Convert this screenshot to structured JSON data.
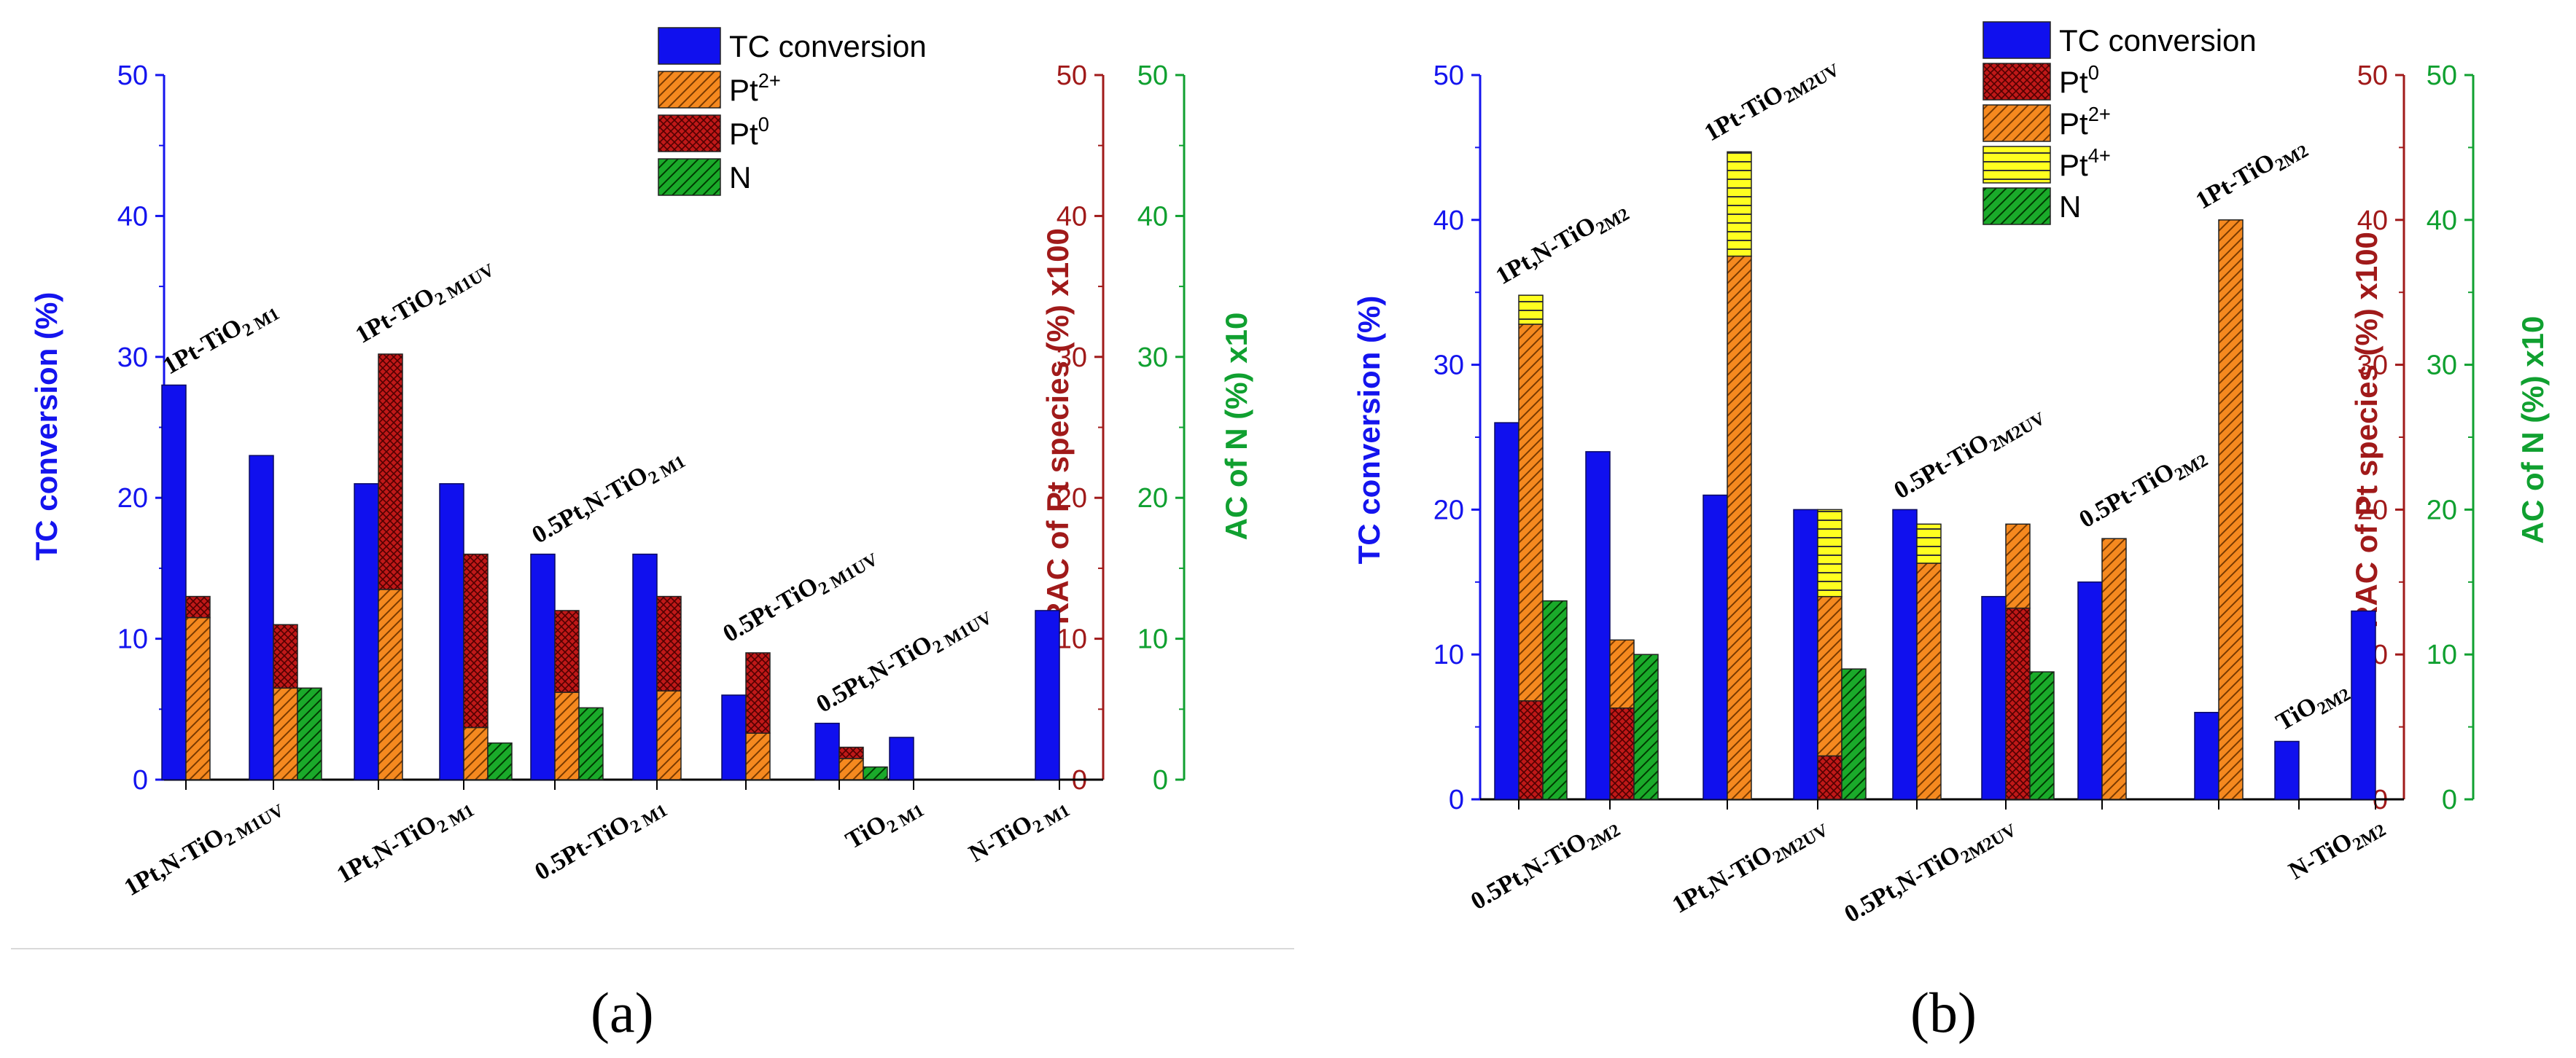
{
  "colors": {
    "blue": "#1010ee",
    "orange": "#f5891f",
    "darkred": "#c01818",
    "yellow": "#ffff20",
    "green": "#1aaa2a",
    "axisBlue": "#1414ee",
    "axisRed": "#a01a1a",
    "axisGreen": "#10a030"
  },
  "panels": [
    {
      "caption": "(a)",
      "legend": [
        {
          "name": "TC conversion",
          "sup": "",
          "style": "blue"
        },
        {
          "name": "Pt",
          "sup": "2+",
          "style": "pt2"
        },
        {
          "name": "Pt",
          "sup": "0",
          "style": "pt0"
        },
        {
          "name": "N",
          "sup": "",
          "style": "n"
        }
      ],
      "axes": {
        "left": {
          "label": "TC conversion (%)",
          "ticks": [
            "0",
            "10",
            "20",
            "30",
            "40",
            "50"
          ]
        },
        "right_red": {
          "label": "RAC of Pt species (%) x100",
          "ticks": [
            "0",
            "10",
            "20",
            "30",
            "40",
            "50"
          ]
        },
        "right_green": {
          "label": "AC of N (%) x10",
          "ticks": [
            "0",
            "10",
            "20",
            "30",
            "40",
            "50"
          ]
        }
      },
      "chart_data": {
        "type": "bar",
        "title": "",
        "ylim": [
          0,
          50
        ],
        "ylabel": "TC conversion (%)",
        "y2label": "RAC of Pt species (%) x100",
        "y3label": "AC of N (%) x10",
        "samples": [
          {
            "label": "1Pt-TiO",
            "sub": "2 M1",
            "tc": 28,
            "pt2": 11.5,
            "pt0": 1.5,
            "pt4": 0,
            "n": 0,
            "labelPos": "top"
          },
          {
            "label": "1Pt,N-TiO",
            "sub": "2 M1UV",
            "tc": 23,
            "pt2": 6.5,
            "pt0": 4.5,
            "pt4": 0,
            "n": 6.5,
            "labelPos": "bottom"
          },
          {
            "label": "1Pt-TiO",
            "sub": "2 M1UV",
            "tc": 21,
            "pt2": 13.5,
            "pt0": 16.7,
            "pt4": 0,
            "n": 0,
            "labelPos": "top"
          },
          {
            "label": "1Pt,N-TiO",
            "sub": "2 M1",
            "tc": 21,
            "pt2": 3.7,
            "pt0": 12.3,
            "pt4": 0,
            "n": 2.6,
            "labelPos": "bottom"
          },
          {
            "label": "0.5Pt,N-TiO",
            "sub": "2 M1",
            "tc": 16,
            "pt2": 6.2,
            "pt0": 5.8,
            "pt4": 0,
            "n": 5.1,
            "labelPos": "top"
          },
          {
            "label": "0.5Pt-TiO",
            "sub": "2 M1",
            "tc": 16,
            "pt2": 6.3,
            "pt0": 6.7,
            "pt4": 0,
            "n": 0,
            "labelPos": "bottom"
          },
          {
            "label": "0.5Pt-TiO",
            "sub": "2 M1UV",
            "tc": 6,
            "pt2": 3.3,
            "pt0": 5.7,
            "pt4": 0,
            "n": 0,
            "labelPos": "top"
          },
          {
            "label": "0.5Pt,N-TiO",
            "sub": "2 M1UV",
            "tc": 4,
            "pt2": 1.5,
            "pt0": 0.8,
            "pt4": 0,
            "n": 0.9,
            "labelPos": "top"
          },
          {
            "label": "TiO",
            "sub": "2 M1",
            "tc": 3,
            "pt2": 0,
            "pt0": 0,
            "pt4": 0,
            "n": 0,
            "labelPos": "bottom"
          },
          {
            "label": "N-TiO",
            "sub": "2 M1",
            "tc": 12,
            "pt2": 0,
            "pt0": 0,
            "pt4": 0,
            "n": 0,
            "labelPos": "bottom"
          }
        ]
      }
    },
    {
      "caption": "(b)",
      "legend": [
        {
          "name": "TC conversion",
          "sup": "",
          "style": "blue"
        },
        {
          "name": "Pt",
          "sup": "0",
          "style": "pt0"
        },
        {
          "name": "Pt",
          "sup": "2+",
          "style": "pt2"
        },
        {
          "name": "Pt",
          "sup": "4+",
          "style": "pt4"
        },
        {
          "name": "N",
          "sup": "",
          "style": "n"
        }
      ],
      "axes": {
        "left": {
          "label": "TC conversion (%)",
          "ticks": [
            "0",
            "10",
            "20",
            "30",
            "40",
            "50"
          ]
        },
        "right_red": {
          "label": "RAC of Pt species (%) x100",
          "ticks": [
            "0",
            "10",
            "20",
            "30",
            "40",
            "50"
          ]
        },
        "right_green": {
          "label": "AC of N (%) x10",
          "ticks": [
            "0",
            "10",
            "20",
            "30",
            "40",
            "50"
          ]
        }
      },
      "chart_data": {
        "type": "bar",
        "title": "",
        "ylim": [
          0,
          50
        ],
        "ylabel": "TC conversion (%)",
        "y2label": "RAC of Pt species (%) x100",
        "y3label": "AC of N (%) x10",
        "samples": [
          {
            "label": "1Pt,N-TiO",
            "sub": "2M2",
            "tc": 26,
            "pt0": 6.8,
            "pt2": 26,
            "pt4": 2,
            "n": 13.7,
            "labelPos": "top"
          },
          {
            "label": "0.5Pt,N-TiO",
            "sub": "2M2",
            "tc": 24,
            "pt0": 6.3,
            "pt2": 4.7,
            "pt4": 0,
            "n": 10,
            "labelPos": "bottom"
          },
          {
            "label": "1Pt-TiO",
            "sub": "2M2UV",
            "tc": 21,
            "pt0": 0,
            "pt2": 37.5,
            "pt4": 7.2,
            "n": 0,
            "labelPos": "top"
          },
          {
            "label": "1Pt,N-TiO",
            "sub": "2M2UV",
            "tc": 20,
            "pt0": 3,
            "pt2": 11,
            "pt4": 6,
            "n": 9,
            "labelPos": "bottom"
          },
          {
            "label": "0.5Pt-TiO",
            "sub": "2M2UV",
            "tc": 20,
            "pt0": 0,
            "pt2": 16.3,
            "pt4": 2.7,
            "n": 0,
            "labelPos": "top"
          },
          {
            "label": "0.5Pt,N-TiO",
            "sub": "2M2UV",
            "tc": 14,
            "pt0": 13.2,
            "pt2": 5.8,
            "pt4": 0,
            "n": 8.8,
            "labelPos": "bottom"
          },
          {
            "label": "0.5Pt-TiO",
            "sub": "2M2",
            "tc": 15,
            "pt0": 0,
            "pt2": 18,
            "pt4": 0,
            "n": 0,
            "labelPos": "top"
          },
          {
            "label": "1Pt-TiO",
            "sub": "2M2",
            "tc": 6,
            "pt0": 0,
            "pt2": 40,
            "pt4": 0,
            "n": 0,
            "labelPos": "top"
          },
          {
            "label": "TiO",
            "sub": "2M2",
            "tc": 4,
            "pt0": 0,
            "pt2": 0,
            "pt4": 0,
            "n": 0,
            "labelPos": "top"
          },
          {
            "label": "N-TiO",
            "sub": "2M2",
            "tc": 13,
            "pt0": 0,
            "pt2": 0,
            "pt4": 0,
            "n": 0,
            "labelPos": "bottom"
          }
        ]
      }
    }
  ]
}
